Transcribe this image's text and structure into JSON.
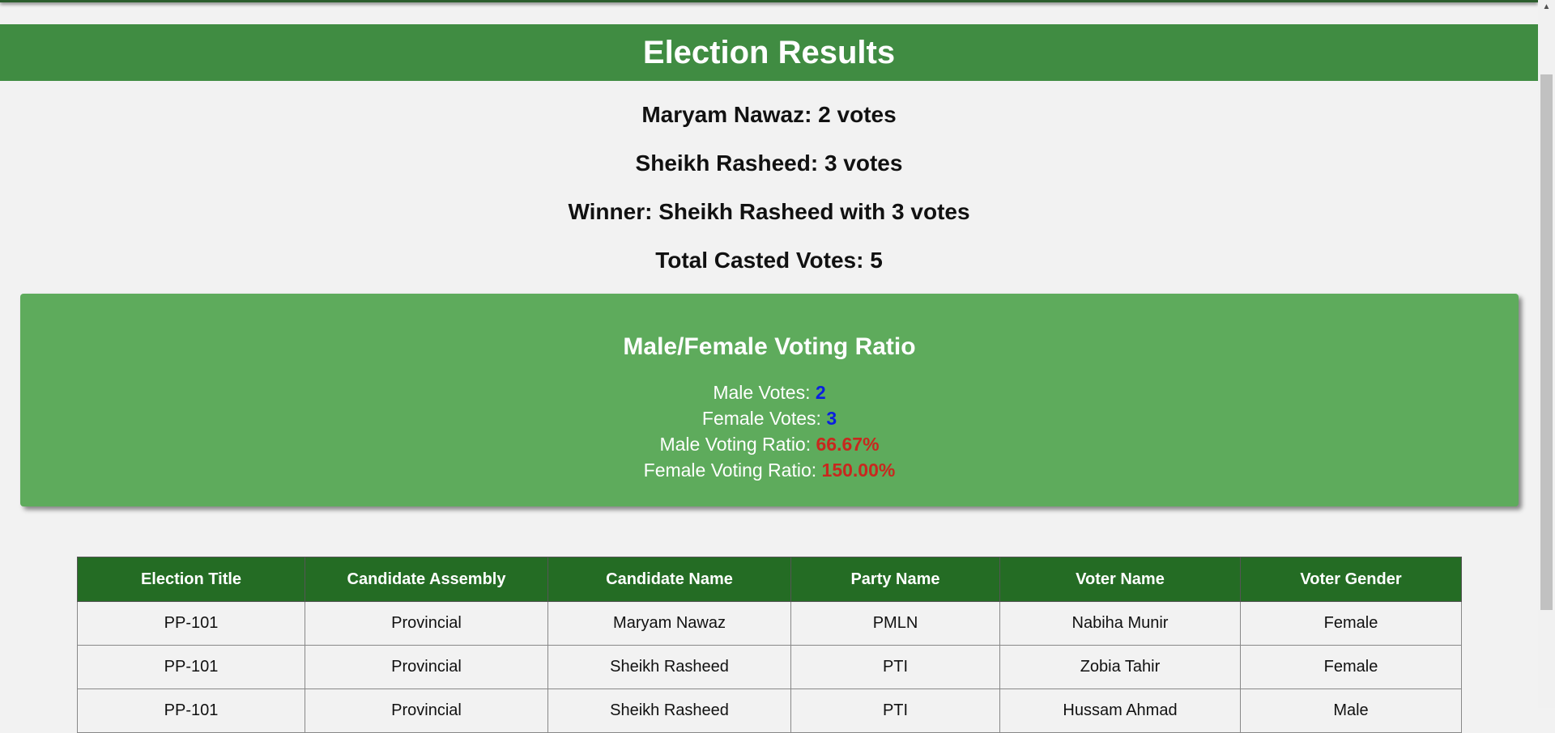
{
  "header": {
    "title": "Election Results"
  },
  "results": {
    "lines": [
      "Maryam Nawaz: 2 votes",
      "Sheikh Rasheed: 3 votes",
      "Winner: Sheikh Rasheed with 3 votes",
      "Total Casted Votes: 5"
    ]
  },
  "ratio": {
    "title": "Male/Female Voting Ratio",
    "male_votes_label": "Male Votes:",
    "male_votes_value": "2",
    "female_votes_label": "Female Votes:",
    "female_votes_value": "3",
    "male_ratio_label": "Male Voting Ratio:",
    "male_ratio_value": "66.67%",
    "female_ratio_label": "Female Voting Ratio:",
    "female_ratio_value": "150.00%"
  },
  "table": {
    "headers": [
      "Election Title",
      "Candidate Assembly",
      "Candidate Name",
      "Party Name",
      "Voter Name",
      "Voter Gender"
    ],
    "rows": [
      [
        "PP-101",
        "Provincial",
        "Maryam Nawaz",
        "PMLN",
        "Nabiha Munir",
        "Female"
      ],
      [
        "PP-101",
        "Provincial",
        "Sheikh Rasheed",
        "PTI",
        "Zobia Tahir",
        "Female"
      ],
      [
        "PP-101",
        "Provincial",
        "Sheikh Rasheed",
        "PTI",
        "Hussam Ahmad",
        "Male"
      ]
    ]
  },
  "colors": {
    "header_green": "#408c42",
    "box_green": "#5eab5c",
    "table_header_green": "#246c24",
    "value_blue": "#0a1fe0",
    "value_red": "#c8281e"
  },
  "icons": {
    "scroll_up": "scroll-up-arrow-icon"
  }
}
